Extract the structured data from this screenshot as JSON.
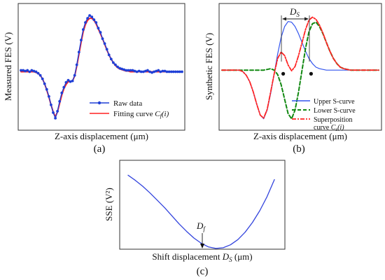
{
  "chart_data": [
    {
      "panel": "(a)",
      "type": "line",
      "xlabel": "Z-axis displacement (μm)",
      "ylabel": "Measured FES (V)",
      "x_units": "arbitrary (no tick labels printed)",
      "x": [
        0,
        3,
        6,
        9,
        12,
        15,
        18,
        21,
        24,
        27,
        30,
        33,
        36,
        39,
        42,
        45,
        48,
        51,
        54,
        57,
        60,
        63,
        66,
        69,
        72,
        75,
        78,
        81,
        84,
        87,
        90,
        93,
        96,
        99,
        102,
        105,
        108,
        111,
        114,
        117,
        120,
        123,
        126,
        129,
        132,
        135,
        138,
        141,
        144,
        147,
        150,
        153,
        156,
        159,
        162,
        165,
        168,
        171,
        174,
        177,
        180,
        183,
        186,
        189,
        192,
        195,
        198,
        201,
        204,
        207,
        210,
        213,
        216,
        219,
        222,
        225
      ],
      "series": [
        {
          "name": "Raw data",
          "color": "#1f3fd6",
          "marker": "circle",
          "values": [
            0.02,
            0.02,
            0.01,
            0.02,
            0.0,
            0.02,
            0.01,
            0.0,
            -0.02,
            -0.05,
            -0.1,
            -0.17,
            -0.25,
            -0.35,
            -0.47,
            -0.58,
            -0.66,
            -0.56,
            -0.42,
            -0.3,
            -0.22,
            -0.15,
            -0.12,
            -0.14,
            -0.13,
            -0.05,
            0.1,
            0.28,
            0.45,
            0.6,
            0.7,
            0.76,
            0.8,
            0.78,
            0.74,
            0.7,
            0.62,
            0.56,
            0.47,
            0.4,
            0.32,
            0.24,
            0.18,
            0.13,
            0.1,
            0.07,
            0.05,
            0.04,
            0.03,
            0.02,
            0.02,
            0.02,
            0.02,
            0.01,
            0.0,
            0.01,
            0.0,
            0.0,
            0.01,
            0.02,
            0.0,
            -0.01,
            0.0,
            0.01,
            0.02,
            0.0,
            0.01,
            0.01,
            0.0,
            0.0,
            0.0,
            0.0,
            0.0,
            0.0,
            0.0,
            0.0
          ]
        },
        {
          "name": "Fitting curve",
          "color": "#ff2222",
          "values": [
            0.0,
            0.0,
            0.0,
            0.0,
            0.0,
            0.0,
            0.0,
            -0.01,
            -0.02,
            -0.05,
            -0.1,
            -0.17,
            -0.26,
            -0.36,
            -0.47,
            -0.57,
            -0.64,
            -0.57,
            -0.45,
            -0.33,
            -0.24,
            -0.18,
            -0.14,
            -0.14,
            -0.13,
            -0.06,
            0.08,
            0.25,
            0.42,
            0.57,
            0.67,
            0.73,
            0.76,
            0.76,
            0.73,
            0.68,
            0.61,
            0.54,
            0.47,
            0.39,
            0.31,
            0.24,
            0.18,
            0.13,
            0.09,
            0.06,
            0.04,
            0.03,
            0.02,
            0.01,
            0.01,
            0.0,
            0.0,
            0.0,
            0.0,
            0.0,
            0.0,
            0.0,
            0.0,
            0.0,
            0.0,
            0.0,
            0.0,
            0.0,
            0.0,
            0.0,
            0.0,
            0.0,
            0.0,
            0.0,
            0.0,
            0.0,
            0.0,
            0.0,
            0.0,
            0.0
          ]
        }
      ],
      "ylim": [
        -0.75,
        0.9
      ],
      "xlim": [
        0,
        225
      ],
      "legend_placement": "bottom-right",
      "grid": false
    },
    {
      "panel": "(b)",
      "type": "line",
      "xlabel": "Z-axis displacement (μm)",
      "ylabel": "Synthetic FES (V)",
      "x": [
        0,
        5,
        10,
        15,
        20,
        25,
        30,
        35,
        40,
        45,
        50,
        55,
        60,
        65,
        70,
        75,
        80,
        85,
        90,
        95,
        100,
        105,
        110,
        115,
        120,
        125,
        130,
        135,
        140,
        145,
        150,
        155,
        160,
        165,
        170,
        175,
        180,
        185,
        190,
        195,
        200,
        205,
        210,
        215,
        220,
        225
      ],
      "series": [
        {
          "name": "Upper S-curve",
          "color": "#3355ee",
          "style": "solid",
          "values": [
            0.0,
            0.0,
            0.0,
            0.0,
            0.0,
            0.0,
            -0.02,
            -0.07,
            -0.16,
            -0.3,
            -0.47,
            -0.62,
            -0.67,
            -0.55,
            -0.32,
            -0.05,
            0.22,
            0.45,
            0.6,
            0.67,
            0.66,
            0.6,
            0.5,
            0.38,
            0.26,
            0.16,
            0.09,
            0.04,
            0.02,
            0.01,
            0.0,
            0.0,
            0.0,
            0.0,
            0.0,
            0.0,
            0.0,
            0.0,
            0.0,
            0.0,
            0.0,
            0.0,
            0.0,
            0.0,
            0.0,
            0.0
          ]
        },
        {
          "name": "Lower S-curve",
          "color": "#118811",
          "style": "dashed",
          "values": [
            0.0,
            0.0,
            0.0,
            0.0,
            0.0,
            0.0,
            0.0,
            0.0,
            0.0,
            0.0,
            0.0,
            0.0,
            0.0,
            0.01,
            0.02,
            0.0,
            -0.06,
            -0.2,
            -0.4,
            -0.6,
            -0.67,
            -0.55,
            -0.3,
            0.0,
            0.3,
            0.53,
            0.64,
            0.66,
            0.6,
            0.5,
            0.38,
            0.26,
            0.16,
            0.09,
            0.04,
            0.02,
            0.01,
            0.0,
            0.0,
            0.0,
            0.0,
            0.0,
            0.0,
            0.0,
            0.0,
            0.0
          ]
        },
        {
          "name": "Superposition curve",
          "color": "#ff2222",
          "style": "dash-dot",
          "values": [
            0.0,
            0.0,
            0.0,
            0.0,
            0.0,
            0.0,
            -0.02,
            -0.07,
            -0.16,
            -0.3,
            -0.47,
            -0.62,
            -0.66,
            -0.54,
            -0.3,
            -0.05,
            0.16,
            0.25,
            0.2,
            0.07,
            -0.01,
            0.05,
            0.2,
            0.38,
            0.56,
            0.69,
            0.73,
            0.7,
            0.62,
            0.51,
            0.38,
            0.26,
            0.16,
            0.09,
            0.04,
            0.02,
            0.01,
            0.0,
            0.0,
            0.0,
            0.0,
            0.0,
            0.0,
            0.0,
            0.0,
            0.0
          ]
        }
      ],
      "ylim": [
        -0.75,
        0.85
      ],
      "xlim": [
        0,
        225
      ],
      "annotations": [
        {
          "label": "D",
          "subscript": "S",
          "type": "double-arrow",
          "x_from": 88,
          "x_to": 128
        }
      ],
      "markers": [
        {
          "x": 88,
          "y": -0.05
        },
        {
          "x": 128,
          "y": -0.05
        }
      ],
      "legend_placement": "bottom-right",
      "grid": false
    },
    {
      "panel": "(c)",
      "type": "line",
      "xlabel": "Shift displacement",
      "ylabel": "SSE (V²)",
      "x": [
        0,
        5,
        10,
        15,
        20,
        25,
        30,
        35,
        40,
        45,
        50,
        55,
        60,
        65,
        70,
        75,
        80,
        85,
        90,
        95,
        100
      ],
      "series": [
        {
          "name": "",
          "color": "#3344dd",
          "values": [
            1.0,
            0.93,
            0.85,
            0.76,
            0.66,
            0.56,
            0.45,
            0.34,
            0.24,
            0.15,
            0.08,
            0.03,
            0.01,
            0.02,
            0.06,
            0.13,
            0.23,
            0.36,
            0.52,
            0.71,
            0.94
          ]
        }
      ],
      "xlim": [
        0,
        100
      ],
      "ylim": [
        0,
        1.05
      ],
      "annotations": [
        {
          "label": "D",
          "subscript": "f",
          "type": "arrow-down",
          "x": 60
        }
      ],
      "grid": false
    }
  ],
  "text": {
    "a": {
      "ylabel": "Measured FES (V)",
      "xlabel": "Z-axis displacement (μm)",
      "caption": "(a)",
      "legend_raw": "Raw data",
      "legend_fit_prefix": "Fitting curve ",
      "legend_fit_symbol": "C",
      "legend_fit_sub": "f",
      "legend_fit_arg": "(i)"
    },
    "b": {
      "ylabel": "Synthetic FES (V)",
      "xlabel": "Z-axis displacement (μm)",
      "caption": "(b)",
      "legend_upper": "Upper S-curve",
      "legend_lower": "Lower S-curve",
      "legend_super_line1": "Superposition",
      "legend_super_prefix": "curve ",
      "legend_super_symbol": "C",
      "legend_super_sub": "s",
      "legend_super_arg": "(i)",
      "ds_main": "D",
      "ds_sub": "S"
    },
    "c": {
      "ylabel": "SSE (V²)",
      "xlabel_prefix": "Shift displacement ",
      "xlabel_symbol": "D",
      "xlabel_sub": "S",
      "xlabel_unit": " (μm)",
      "caption": "(c)",
      "df_main": "D",
      "df_sub": "f"
    }
  }
}
